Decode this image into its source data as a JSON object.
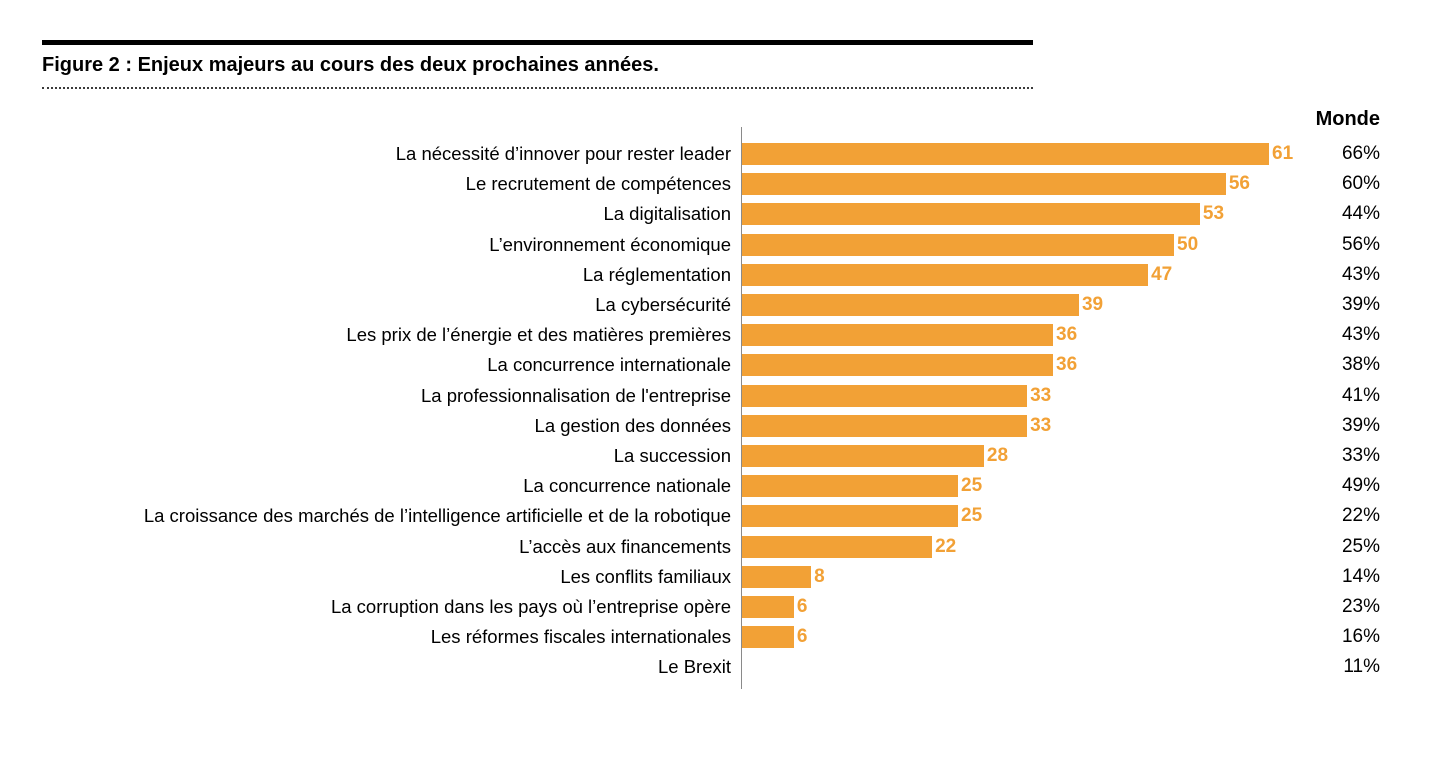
{
  "figure": {
    "title": "Figure 2 : Enjeux majeurs au cours des deux prochaines années."
  },
  "chart_data": {
    "type": "bar",
    "orientation": "horizontal",
    "title": "Figure 2 : Enjeux majeurs au cours des deux prochaines années.",
    "xlabel": "",
    "ylabel": "",
    "xlim": [
      0,
      63
    ],
    "grid": false,
    "legend": "none",
    "bar_color": "#F2A136",
    "value_label_color": "#F2A136",
    "axis_color": "#8A8A8A",
    "text_color": "#000000",
    "monde_label": "Monde",
    "categories": [
      "La nécessité d’innover pour rester leader",
      "Le recrutement de compétences",
      "La digitalisation",
      "L’environnement économique",
      "La réglementation",
      "La cybersécurité",
      "Les prix de l’énergie et des matières premières",
      "La concurrence internationale",
      "La professionnalisation de l'entreprise",
      "La gestion des données",
      "La succession",
      "La concurrence nationale",
      "La croissance des marchés de l’intelligence artificielle et de la robotique",
      "L’accès aux financements",
      "Les conflits familiaux",
      "La corruption dans les pays où l’entreprise opère",
      "Les réformes fiscales internationales",
      "Le Brexit"
    ],
    "values": [
      61,
      56,
      53,
      50,
      47,
      39,
      36,
      36,
      33,
      33,
      28,
      25,
      25,
      22,
      8,
      6,
      6,
      null
    ],
    "monde_values": [
      "66%",
      "60%",
      "44%",
      "56%",
      "43%",
      "39%",
      "43%",
      "38%",
      "41%",
      "39%",
      "33%",
      "49%",
      "22%",
      "25%",
      "14%",
      "23%",
      "16%",
      "11%"
    ]
  }
}
